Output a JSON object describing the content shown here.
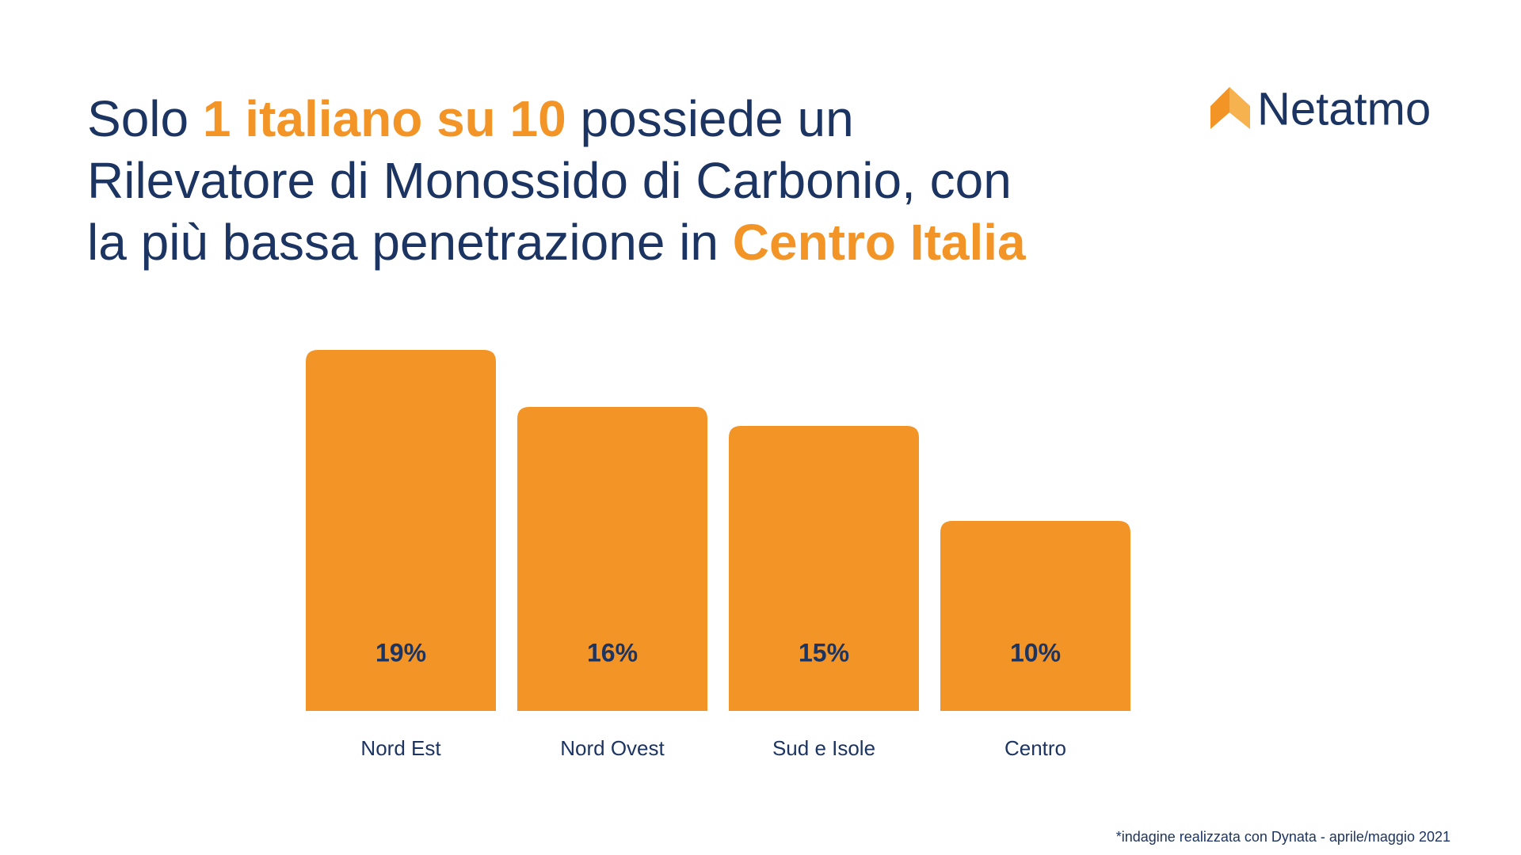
{
  "chart_data": {
    "type": "bar",
    "title": [
      [
        {
          "text": "Solo ",
          "color": "#1c3461"
        },
        {
          "text": "1 italiano su 10",
          "color": "#f39427",
          "bold": true
        },
        {
          "text": " possiede un",
          "color": "#1c3461"
        }
      ],
      [
        {
          "text": "Rilevatore di Monossido di Carbonio, con",
          "color": "#1c3461"
        }
      ],
      [
        {
          "text": "la più bassa penetrazione in ",
          "color": "#1c3461"
        },
        {
          "text": "Centro Italia",
          "color": "#f39427",
          "bold": true
        }
      ]
    ],
    "logo": "Netatmo",
    "categories": [
      "Nord Est",
      "Nord Ovest",
      "Sud e Isole",
      "Centro"
    ],
    "values": [
      19,
      16,
      15,
      10
    ],
    "value_labels": [
      "19%",
      "16%",
      "15%",
      "10%"
    ],
    "color": "#f39427",
    "footnote": "*indagine realizzata con Dynata - aprile/maggio 2021"
  }
}
